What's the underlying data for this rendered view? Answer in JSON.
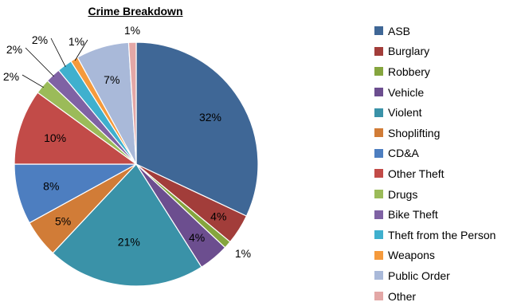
{
  "chart_data": {
    "type": "pie",
    "title": "Crime Breakdown",
    "legend_position": "right",
    "slices": [
      {
        "name": "ASB",
        "value": 32,
        "label": "32%",
        "color": "#3F6796"
      },
      {
        "name": "Burglary",
        "value": 4,
        "label": "4%",
        "color": "#A23D3A"
      },
      {
        "name": "Robbery",
        "value": 1,
        "label": "1%",
        "color": "#85A53E"
      },
      {
        "name": "Vehicle",
        "value": 4,
        "label": "4%",
        "color": "#6C4E8F"
      },
      {
        "name": "Violent",
        "value": 21,
        "label": "21%",
        "color": "#3A92A8"
      },
      {
        "name": "Shoplifting",
        "value": 5,
        "label": "5%",
        "color": "#D17C37"
      },
      {
        "name": "CD&A",
        "value": 8,
        "label": "8%",
        "color": "#4D7EC0"
      },
      {
        "name": "Other Theft",
        "value": 10,
        "label": "10%",
        "color": "#C24B48"
      },
      {
        "name": "Drugs",
        "value": 2,
        "label": "2%",
        "color": "#9BBB59"
      },
      {
        "name": "Bike Theft",
        "value": 2,
        "label": "2%",
        "color": "#7F62A4"
      },
      {
        "name": "Theft from the Person",
        "value": 2,
        "label": "2%",
        "color": "#3FB0CE"
      },
      {
        "name": "Weapons",
        "value": 1,
        "label": "1%",
        "color": "#F59A3C"
      },
      {
        "name": "Public Order",
        "value": 7,
        "label": "7%",
        "color": "#A9B9D9"
      },
      {
        "name": "Other",
        "value": 1,
        "label": "1%",
        "color": "#E3A7A6"
      }
    ]
  }
}
